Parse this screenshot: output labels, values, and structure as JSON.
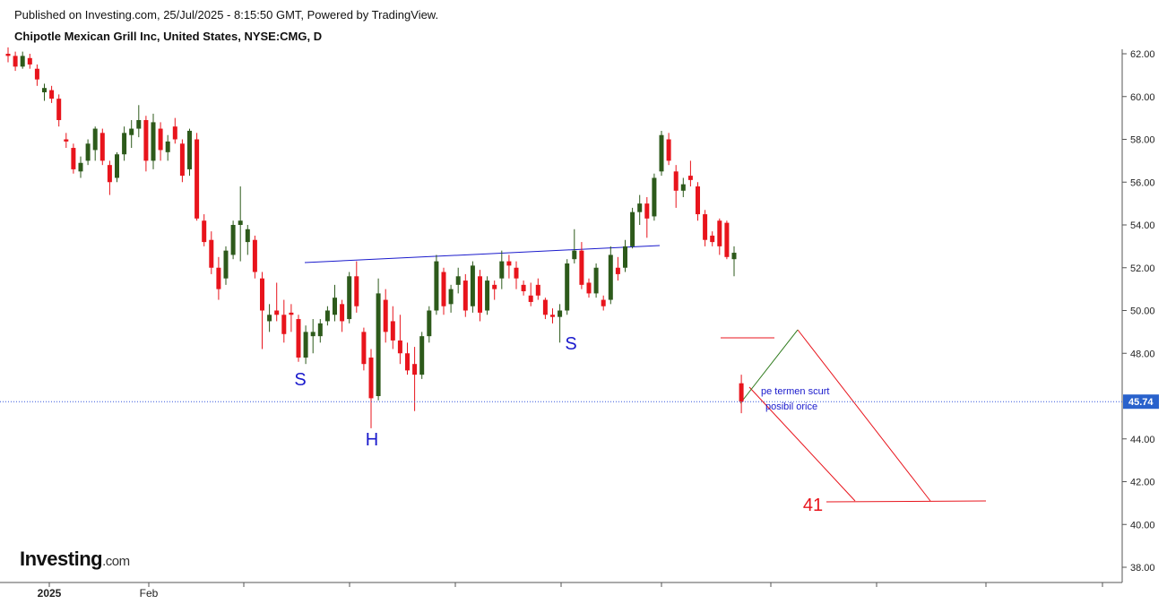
{
  "header": {
    "published": "Published on Investing.com, 25/Jul/2025 - 8:15:50 GMT, Powered by TradingView.",
    "symbol": "Chipotle Mexican Grill Inc, United States, NYSE:CMG, D"
  },
  "logo": {
    "brand": "Investing",
    "suffix": ".com"
  },
  "chart_data": {
    "type": "candlestick",
    "x_labels": [
      "2025",
      "Feb"
    ],
    "up_color": "#2d5a1b",
    "down_color": "#e8141c",
    "ylim": [
      38,
      62
    ],
    "yticks": [
      {
        "value": 38,
        "label": "38.00"
      },
      {
        "value": 40,
        "label": "40.00"
      },
      {
        "value": 42,
        "label": "42.00"
      },
      {
        "value": 44,
        "label": "44.00"
      },
      {
        "value": 48,
        "label": "48.00"
      },
      {
        "value": 50,
        "label": "50.00"
      },
      {
        "value": 52,
        "label": "52.00"
      },
      {
        "value": 54,
        "label": "54.00"
      },
      {
        "value": 56,
        "label": "56.00"
      },
      {
        "value": 58,
        "label": "58.00"
      },
      {
        "value": 60,
        "label": "60.00"
      },
      {
        "value": 62,
        "label": "62.00"
      }
    ],
    "last_price": {
      "value": 45.74,
      "label": "45.74"
    },
    "annotations": [
      "S",
      "H",
      "S",
      "pe termen scurt",
      "posibil orice",
      "41"
    ],
    "ohlc": [
      [
        62,
        62.3,
        61.6,
        61.9
      ],
      [
        61.9,
        62.1,
        61.2,
        61.4
      ],
      [
        61.4,
        62.1,
        61.3,
        61.9
      ],
      [
        61.8,
        62,
        61.3,
        61.5
      ],
      [
        61.3,
        61.5,
        60.5,
        60.8
      ],
      [
        60.2,
        60.6,
        59.8,
        60.4
      ],
      [
        60.3,
        60.5,
        59.7,
        59.9
      ],
      [
        59.9,
        60.1,
        58.6,
        58.9
      ],
      [
        58,
        58.3,
        57.6,
        57.9
      ],
      [
        57.6,
        57.8,
        56.4,
        56.6
      ],
      [
        56.5,
        57.2,
        56.2,
        56.9
      ],
      [
        57,
        58,
        56.8,
        57.8
      ],
      [
        57.5,
        58.6,
        57,
        58.5
      ],
      [
        58.3,
        58.5,
        56.8,
        57
      ],
      [
        56.8,
        57,
        55.4,
        56
      ],
      [
        56.2,
        57.4,
        56,
        57.3
      ],
      [
        57.3,
        58.6,
        57,
        58.3
      ],
      [
        58.2,
        58.9,
        57.6,
        58.5
      ],
      [
        58.5,
        59.6,
        58.1,
        58.9
      ],
      [
        58.9,
        59.1,
        56.5,
        57
      ],
      [
        57,
        59.2,
        56.6,
        58.8
      ],
      [
        58.5,
        58.8,
        57,
        57.5
      ],
      [
        57.4,
        58.2,
        57,
        57.9
      ],
      [
        58.6,
        59,
        57.8,
        58
      ],
      [
        57.8,
        58,
        56,
        56.3
      ],
      [
        56.6,
        58.5,
        56.3,
        58.4
      ],
      [
        58,
        58.3,
        54.2,
        54.3
      ],
      [
        54.2,
        54.5,
        53,
        53.2
      ],
      [
        53.3,
        53.7,
        51.7,
        52
      ],
      [
        52,
        52.5,
        50.5,
        51
      ],
      [
        51.5,
        53,
        51.2,
        52.8
      ],
      [
        52.6,
        54.2,
        52.4,
        54
      ],
      [
        54,
        55.8,
        52.3,
        54.2
      ],
      [
        53.2,
        54,
        52.6,
        53.8
      ],
      [
        53.3,
        53.5,
        51.5,
        51.8
      ],
      [
        51.5,
        51.8,
        48.2,
        50
      ],
      [
        49.5,
        50.3,
        49,
        49.8
      ],
      [
        50,
        51.3,
        49.5,
        49.8
      ],
      [
        49.8,
        50.5,
        48.5,
        48.9
      ],
      [
        49.9,
        50.3,
        49,
        49.8
      ],
      [
        49.6,
        49.8,
        47.6,
        47.8
      ],
      [
        47.8,
        49.3,
        47.5,
        49
      ],
      [
        48.8,
        49.6,
        48,
        49
      ],
      [
        48.8,
        49.6,
        48.5,
        49.4
      ],
      [
        49.5,
        50.2,
        49.3,
        50
      ],
      [
        49.8,
        51.2,
        49.5,
        50.6
      ],
      [
        50.3,
        50.5,
        49,
        49.5
      ],
      [
        49.6,
        51.8,
        49.4,
        51.6
      ],
      [
        51.6,
        52.3,
        49.9,
        50.2
      ],
      [
        49,
        49.2,
        47.2,
        47.5
      ],
      [
        47.8,
        48.2,
        44.5,
        45.9
      ],
      [
        46,
        51.5,
        45.8,
        50.8
      ],
      [
        50.5,
        51,
        48.5,
        49
      ],
      [
        49.5,
        50.2,
        48.2,
        48.6
      ],
      [
        48.6,
        49.8,
        47.5,
        48
      ],
      [
        48,
        48.5,
        47,
        47.2
      ],
      [
        47.5,
        48.3,
        45.3,
        47
      ],
      [
        47,
        49,
        46.8,
        48.8
      ],
      [
        48.8,
        50.2,
        48.5,
        50
      ],
      [
        50,
        52.6,
        49.8,
        52.3
      ],
      [
        51.8,
        52,
        49.8,
        50.2
      ],
      [
        50.3,
        51.2,
        49.9,
        51
      ],
      [
        51.2,
        52,
        50.8,
        51.6
      ],
      [
        51.4,
        51.7,
        49.7,
        50
      ],
      [
        50.2,
        52.3,
        49.9,
        52.1
      ],
      [
        51.6,
        51.9,
        49.5,
        49.9
      ],
      [
        50,
        51.6,
        49.8,
        51.4
      ],
      [
        51.2,
        51.4,
        50.5,
        51
      ],
      [
        51.5,
        52.8,
        51,
        52.3
      ],
      [
        52.3,
        52.6,
        51.5,
        52.1
      ],
      [
        52,
        52.3,
        51,
        51.5
      ],
      [
        51.2,
        51.4,
        50.7,
        50.9
      ],
      [
        50.7,
        51.3,
        50.2,
        50.4
      ],
      [
        51.2,
        51.5,
        50.5,
        50.7
      ],
      [
        50.5,
        50.6,
        49.6,
        49.8
      ],
      [
        49.8,
        50.1,
        49.4,
        49.7
      ],
      [
        49.7,
        50.3,
        48.5,
        50
      ],
      [
        50,
        52.4,
        49.8,
        52.2
      ],
      [
        52.4,
        53.8,
        52.2,
        52.8
      ],
      [
        52.8,
        53.2,
        51,
        51.2
      ],
      [
        51.3,
        51.5,
        50.6,
        50.8
      ],
      [
        50.8,
        52.2,
        50.6,
        52
      ],
      [
        50.5,
        50.7,
        50,
        50.2
      ],
      [
        50.5,
        53,
        50.3,
        52.6
      ],
      [
        52,
        52.5,
        51.4,
        51.7
      ],
      [
        52,
        53.3,
        51.8,
        53
      ],
      [
        53,
        54.8,
        52.9,
        54.6
      ],
      [
        54.6,
        55.4,
        54,
        55
      ],
      [
        55,
        55.3,
        53.4,
        54.3
      ],
      [
        54.4,
        56.4,
        54.2,
        56.2
      ],
      [
        56.5,
        58.4,
        56.3,
        58.2
      ],
      [
        58,
        58.3,
        56.8,
        57
      ],
      [
        56.5,
        56.8,
        54.8,
        55.6
      ],
      [
        55.6,
        56.2,
        55.3,
        55.9
      ],
      [
        56.3,
        57,
        55.8,
        56.1
      ],
      [
        55.8,
        56,
        54.2,
        54.5
      ],
      [
        54.5,
        54.7,
        53,
        53.3
      ],
      [
        53.5,
        53.7,
        53,
        53.2
      ],
      [
        54.2,
        54.3,
        52.6,
        53
      ],
      [
        54.1,
        54.2,
        52.4,
        52.5
      ],
      [
        52.4,
        53,
        51.6,
        52.7
      ],
      [
        46.6,
        47,
        45.2,
        45.74
      ]
    ]
  }
}
